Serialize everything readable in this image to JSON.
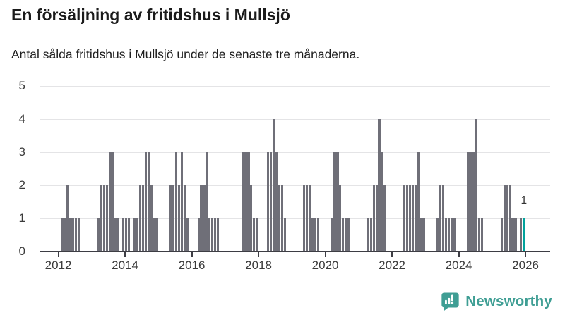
{
  "chart_data": {
    "type": "bar",
    "title": "En försäljning av fritidshus i Mullsjö",
    "subtitle": "Antal sålda fritidshus i Mullsjö under de senaste tre månaderna.",
    "frequency": "monthly",
    "start_month": "2011-07",
    "end_month": "2025-12",
    "ylim": [
      0,
      5
    ],
    "y_ticks": [
      0,
      1,
      2,
      3,
      4,
      5
    ],
    "x_tick_labels": [
      "2012",
      "2014",
      "2016",
      "2018",
      "2020",
      "2022",
      "2024",
      "2026"
    ],
    "grid": "horizontal",
    "bar_color": "#6f6f78",
    "values": [
      0,
      0,
      0,
      0,
      0,
      0,
      0,
      1,
      1,
      2,
      1,
      1,
      1,
      1,
      0,
      0,
      0,
      0,
      0,
      0,
      1,
      2,
      2,
      2,
      3,
      3,
      1,
      1,
      0,
      1,
      1,
      1,
      0,
      1,
      1,
      2,
      2,
      3,
      3,
      2,
      1,
      1,
      0,
      0,
      0,
      0,
      2,
      2,
      3,
      2,
      3,
      2,
      1,
      0,
      0,
      0,
      1,
      2,
      2,
      3,
      1,
      1,
      1,
      1,
      0,
      0,
      0,
      0,
      0,
      0,
      0,
      0,
      3,
      3,
      3,
      2,
      1,
      1,
      0,
      0,
      0,
      3,
      3,
      4,
      3,
      2,
      2,
      1,
      0,
      0,
      0,
      0,
      0,
      0,
      2,
      2,
      2,
      1,
      1,
      1,
      0,
      0,
      0,
      0,
      1,
      3,
      3,
      2,
      1,
      1,
      1,
      0,
      0,
      0,
      0,
      0,
      0,
      1,
      1,
      2,
      2,
      4,
      3,
      2,
      0,
      0,
      0,
      0,
      0,
      0,
      2,
      2,
      2,
      2,
      2,
      3,
      1,
      1,
      0,
      0,
      0,
      0,
      1,
      2,
      2,
      1,
      1,
      1,
      1,
      0,
      0,
      0,
      0,
      3,
      3,
      3,
      4,
      1,
      1,
      0,
      0,
      0,
      0,
      0,
      0,
      1,
      2,
      2,
      2,
      1,
      1,
      0,
      1,
      1
    ],
    "highlight": {
      "index": 173,
      "month": "2025-12",
      "value": 1,
      "label": "1",
      "color": "#00a29c"
    }
  },
  "branding": {
    "logo_text": "Newsworthy",
    "logo_color": "#3f9e94"
  }
}
